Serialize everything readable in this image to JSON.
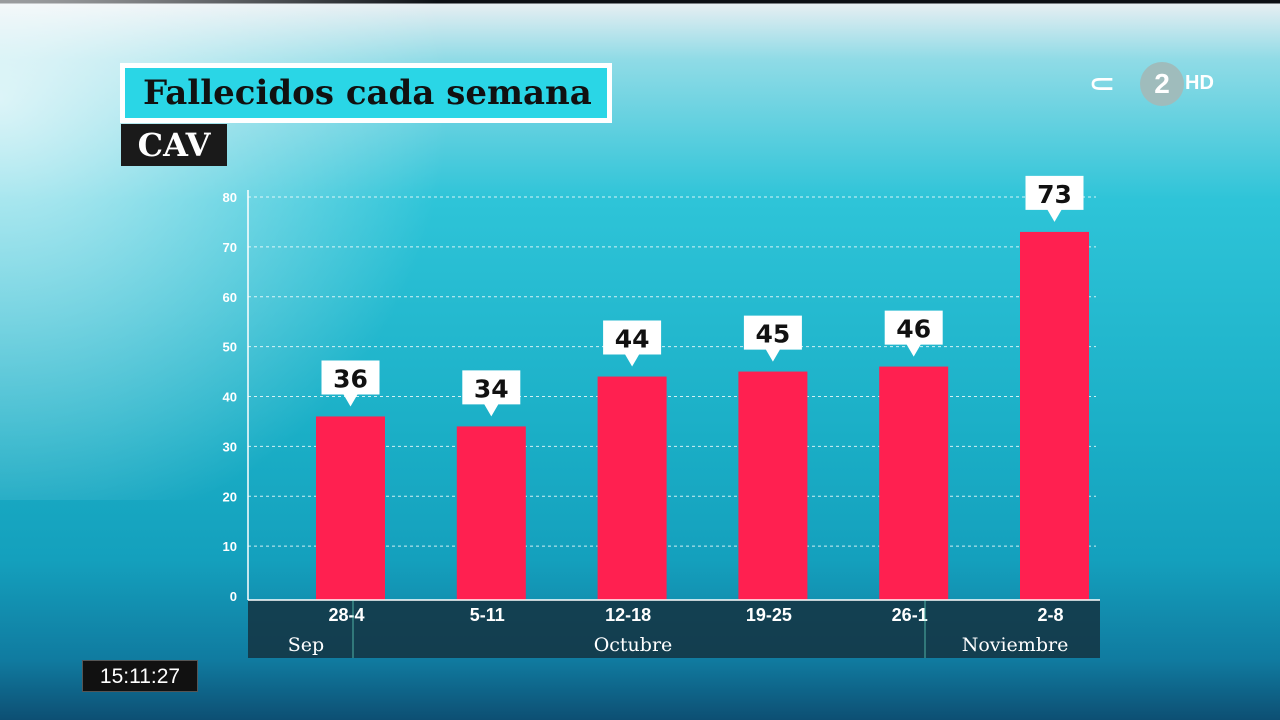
{
  "header": {
    "title": "Fallecidos cada semana",
    "region": "CAV"
  },
  "logo": {
    "channel_number": "2",
    "hd": "HD"
  },
  "clock": "15:11:27",
  "chart_data": {
    "type": "bar",
    "title": "Fallecidos cada semana",
    "subtitle": "CAV",
    "categories": [
      "28-4",
      "5-11",
      "12-18",
      "19-25",
      "26-1",
      "2-8"
    ],
    "values": [
      36,
      34,
      44,
      45,
      46,
      73
    ],
    "data_labels": [
      "36",
      "34",
      "44",
      "45",
      "46",
      "73"
    ],
    "months": [
      {
        "label": "Sep"
      },
      {
        "label": "Octubre"
      },
      {
        "label": "Noviembre"
      }
    ],
    "yticks": [
      "0",
      "10",
      "20",
      "30",
      "40",
      "50",
      "60",
      "70",
      "80"
    ],
    "ylim": [
      0,
      80
    ],
    "grid": true,
    "bar_color": "#ff2050"
  }
}
